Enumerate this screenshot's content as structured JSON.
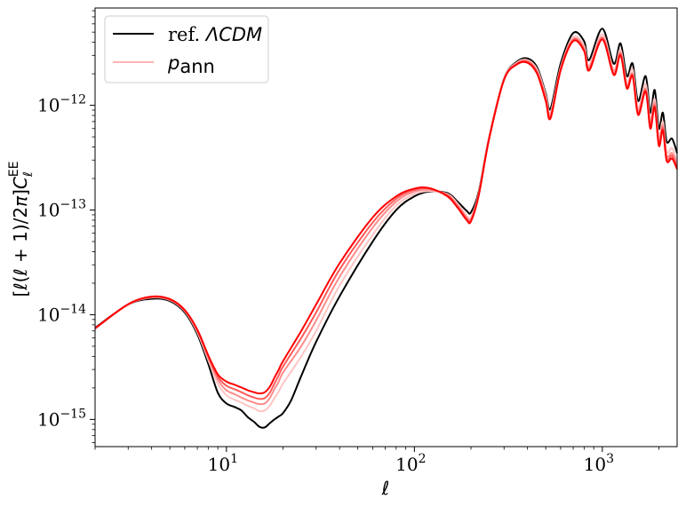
{
  "chart_data": {
    "type": "line",
    "xscale": "log",
    "yscale": "log",
    "xlim": [
      2,
      2500
    ],
    "ylim": [
      5.5e-16,
      8.5e-12
    ],
    "xlabel": "ℓ",
    "ylabel": "[ℓ(ℓ+1)/2π]C_ℓ^EE",
    "x_ticks": [
      {
        "value": 10,
        "base": "10",
        "exp": "1"
      },
      {
        "value": 100,
        "base": "10",
        "exp": "2"
      },
      {
        "value": 1000,
        "base": "10",
        "exp": "3"
      }
    ],
    "y_ticks": [
      {
        "value": 1e-15,
        "base": "10",
        "exp": "−15"
      },
      {
        "value": 1e-14,
        "base": "10",
        "exp": "−14"
      },
      {
        "value": 1e-13,
        "base": "10",
        "exp": "−13"
      },
      {
        "value": 1e-12,
        "base": "10",
        "exp": "−12"
      }
    ],
    "legend": {
      "placement": "upper-left",
      "entries": [
        {
          "prefix": "ref. ",
          "label": "ΛCDM",
          "color": "#000000"
        },
        {
          "prefix": "",
          "label": "p",
          "sub": "ann",
          "color": "#ffb3b3"
        }
      ]
    },
    "series": [
      {
        "name": "ref. ΛCDM",
        "color": "#000000",
        "x": [
          2,
          3,
          4,
          5,
          6,
          7,
          8,
          9,
          10,
          11,
          12,
          13,
          14,
          15,
          16,
          17,
          18,
          19,
          20,
          22,
          25,
          30,
          40,
          60,
          80,
          100,
          120,
          150,
          170,
          190,
          200,
          220,
          250,
          300,
          350,
          400,
          450,
          500,
          530,
          600,
          700,
          800,
          850,
          1000,
          1150,
          1250,
          1350,
          1450,
          1550,
          1700,
          1800,
          1900,
          2000,
          2100,
          2200,
          2350,
          2500
        ],
        "y": [
          7.5e-15,
          1.25e-14,
          1.42e-14,
          1.35e-14,
          1.05e-14,
          6.5e-15,
          3.4e-15,
          1.8e-15,
          1.42e-15,
          1.32e-15,
          1.22e-15,
          1.05e-15,
          9.5e-16,
          8.5e-16,
          8.4e-16,
          9.2e-16,
          1e-15,
          1.07e-15,
          1.15e-15,
          1.5e-15,
          2.6e-15,
          5.5e-15,
          1.5e-14,
          5e-14,
          1e-13,
          1.35e-13,
          1.5e-13,
          1.45e-13,
          1.2e-13,
          9.8e-14,
          9.5e-14,
          1.5e-13,
          5e-13,
          1.8e-12,
          2.6e-12,
          2.8e-12,
          2.3e-12,
          1.3e-12,
          9.3e-13,
          2.5e-12,
          4.9e-12,
          4.1e-12,
          2.7e-12,
          5.4e-12,
          2.5e-12,
          3.9e-12,
          1.9e-12,
          2.5e-12,
          1.1e-12,
          1.9e-12,
          8.5e-13,
          1.4e-12,
          6e-13,
          8.5e-13,
          4.5e-13,
          4.8e-13,
          3.5e-13
        ]
      },
      {
        "name": "p_ann 1",
        "color": "#ffc4c4",
        "x": [
          2,
          3,
          4,
          5,
          6,
          7,
          8,
          9,
          10,
          11,
          12,
          13,
          14,
          15,
          16,
          17,
          18,
          19,
          20,
          25,
          30,
          40,
          60,
          80,
          100,
          120,
          150,
          170,
          190,
          200,
          220,
          250,
          300,
          350,
          400,
          450,
          500,
          530,
          600,
          700,
          800,
          850,
          1000,
          1150,
          1250,
          1350,
          1450,
          1550,
          1700,
          1800,
          1900,
          2000,
          2100,
          2200,
          2350,
          2500
        ],
        "y": [
          7.4e-15,
          1.25e-14,
          1.46e-14,
          1.38e-14,
          1.08e-14,
          6.8e-15,
          3.7e-15,
          2.2e-15,
          1.7e-15,
          1.55e-15,
          1.45e-15,
          1.35e-15,
          1.28e-15,
          1.2e-15,
          1.22e-15,
          1.35e-15,
          1.6e-15,
          1.85e-15,
          2.2e-15,
          4e-15,
          7e-15,
          1.9e-14,
          5.8e-14,
          1.1e-13,
          1.42e-13,
          1.52e-13,
          1.42e-13,
          1.15e-13,
          8.8e-14,
          8.5e-14,
          1.45e-13,
          5e-13,
          1.8e-12,
          2.55e-12,
          2.7e-12,
          2.2e-12,
          1.25e-12,
          8.5e-13,
          2.3e-12,
          4.5e-12,
          3.7e-12,
          2.4e-12,
          4.8e-12,
          2.2e-12,
          3.4e-12,
          1.65e-12,
          2.2e-12,
          9.5e-13,
          1.6e-12,
          7.2e-13,
          1.15e-12,
          5e-13,
          7e-13,
          3.6e-13,
          3.9e-13,
          2.9e-13
        ]
      },
      {
        "name": "p_ann 2",
        "color": "#ff8c8c",
        "x": [
          2,
          3,
          4,
          5,
          6,
          7,
          8,
          9,
          10,
          11,
          12,
          13,
          14,
          15,
          16,
          17,
          18,
          19,
          20,
          25,
          30,
          40,
          60,
          80,
          100,
          120,
          150,
          170,
          190,
          200,
          220,
          250,
          300,
          350,
          400,
          450,
          500,
          530,
          600,
          700,
          800,
          850,
          1000,
          1150,
          1250,
          1350,
          1450,
          1550,
          1700,
          1800,
          1900,
          2000,
          2100,
          2200,
          2350,
          2500
        ],
        "y": [
          7.4e-15,
          1.25e-14,
          1.47e-14,
          1.39e-14,
          1.09e-14,
          7e-15,
          3.9e-15,
          2.4e-15,
          1.9e-15,
          1.75e-15,
          1.62e-15,
          1.52e-15,
          1.45e-15,
          1.4e-15,
          1.42e-15,
          1.6e-15,
          1.95e-15,
          2.3e-15,
          2.8e-15,
          5e-15,
          8.8e-15,
          2.3e-14,
          6.8e-14,
          1.2e-13,
          1.5e-13,
          1.56e-13,
          1.4e-13,
          1.1e-13,
          8.5e-14,
          8.2e-14,
          1.42e-13,
          4.9e-13,
          1.78e-12,
          2.5e-12,
          2.65e-12,
          2.1e-12,
          1.2e-12,
          8e-13,
          2.25e-12,
          4.3e-12,
          3.5e-12,
          2.3e-12,
          4.5e-12,
          2.1e-12,
          3.2e-12,
          1.55e-12,
          2e-12,
          8.8e-13,
          1.45e-12,
          6.6e-13,
          1.05e-12,
          4.5e-13,
          6.4e-13,
          3.3e-13,
          3.5e-13,
          2.7e-13
        ]
      },
      {
        "name": "p_ann 3",
        "color": "#ff5a5a",
        "x": [
          2,
          3,
          4,
          5,
          6,
          7,
          8,
          9,
          10,
          11,
          12,
          13,
          14,
          15,
          16,
          17,
          18,
          19,
          20,
          25,
          30,
          40,
          60,
          80,
          100,
          120,
          150,
          170,
          190,
          200,
          220,
          250,
          300,
          350,
          400,
          450,
          500,
          530,
          600,
          700,
          800,
          850,
          1000,
          1150,
          1250,
          1350,
          1450,
          1550,
          1700,
          1800,
          1900,
          2000,
          2100,
          2200,
          2350,
          2500
        ],
        "y": [
          7.4e-15,
          1.26e-14,
          1.48e-14,
          1.4e-14,
          1.1e-14,
          7.1e-15,
          4e-15,
          2.55e-15,
          2.1e-15,
          1.95e-15,
          1.82e-15,
          1.7e-15,
          1.62e-15,
          1.57e-15,
          1.6e-15,
          1.8e-15,
          2.2e-15,
          2.65e-15,
          3.2e-15,
          6e-15,
          1.05e-14,
          2.7e-14,
          7.6e-14,
          1.28e-13,
          1.56e-13,
          1.6e-13,
          1.38e-13,
          1.08e-13,
          8.2e-14,
          8e-14,
          1.4e-13,
          4.85e-13,
          1.76e-12,
          2.48e-12,
          2.6e-12,
          2.05e-12,
          1.15e-12,
          7.8e-13,
          2.2e-12,
          4.2e-12,
          3.4e-12,
          2.2e-12,
          4.35e-12,
          2e-12,
          3.1e-12,
          1.5e-12,
          1.95e-12,
          8.4e-13,
          1.4e-12,
          6.3e-13,
          1e-12,
          4.3e-13,
          6.1e-13,
          3.1e-13,
          3.3e-13,
          2.55e-13
        ]
      },
      {
        "name": "p_ann 4",
        "color": "#ff0000",
        "x": [
          2,
          3,
          4,
          5,
          6,
          7,
          8,
          9,
          10,
          11,
          12,
          13,
          14,
          15,
          16,
          17,
          18,
          19,
          20,
          25,
          30,
          40,
          60,
          80,
          100,
          120,
          150,
          170,
          190,
          200,
          220,
          250,
          300,
          350,
          400,
          450,
          500,
          530,
          600,
          700,
          800,
          850,
          1000,
          1150,
          1250,
          1350,
          1450,
          1550,
          1700,
          1800,
          1900,
          2000,
          2100,
          2200,
          2350,
          2500
        ],
        "y": [
          7.4e-15,
          1.26e-14,
          1.49e-14,
          1.41e-14,
          1.11e-14,
          7.2e-15,
          4.1e-15,
          2.7e-15,
          2.3e-15,
          2.15e-15,
          2.02e-15,
          1.9e-15,
          1.82e-15,
          1.77e-15,
          1.82e-15,
          2.05e-15,
          2.5e-15,
          3e-15,
          3.6e-15,
          7e-15,
          1.25e-14,
          3.1e-14,
          8.5e-14,
          1.35e-13,
          1.6e-13,
          1.62e-13,
          1.35e-13,
          1.05e-13,
          8e-14,
          7.8e-14,
          1.38e-13,
          4.8e-13,
          1.75e-12,
          2.45e-12,
          2.55e-12,
          2e-12,
          1.1e-12,
          7.5e-13,
          2.15e-12,
          4.1e-12,
          3.3e-12,
          2.15e-12,
          4.25e-12,
          1.95e-12,
          3e-12,
          1.45e-12,
          1.9e-12,
          8.1e-13,
          1.35e-12,
          6e-13,
          9.6e-13,
          4.1e-13,
          5.8e-13,
          2.95e-13,
          3.1e-13,
          2.45e-13
        ]
      }
    ]
  }
}
